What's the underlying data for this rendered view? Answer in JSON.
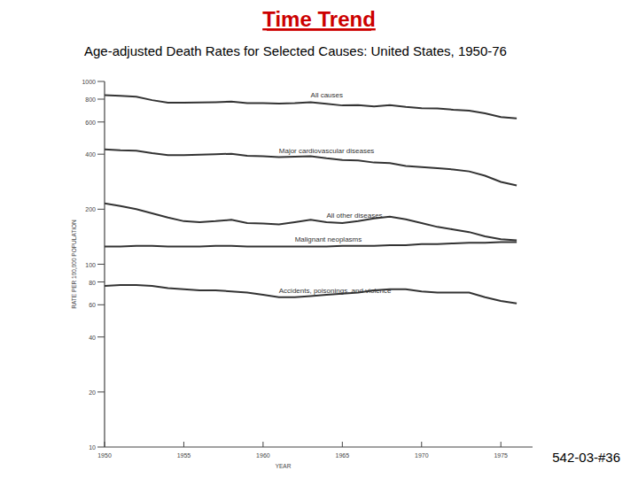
{
  "chart_data": {
    "type": "line",
    "title": "Time Trend",
    "subtitle": "Age-adjusted Death Rates for Selected Causes: United States, 1950-76",
    "x_label": "YEAR",
    "y_label": "RATE PER 100,000 POPULATION",
    "note": "542-03-#36",
    "log": "y",
    "x": [
      1950,
      1951,
      1952,
      1953,
      1954,
      1955,
      1956,
      1957,
      1958,
      1959,
      1960,
      1961,
      1962,
      1963,
      1964,
      1965,
      1966,
      1967,
      1968,
      1969,
      1970,
      1971,
      1972,
      1973,
      1974,
      1975,
      1976
    ],
    "xlim": [
      1950,
      1977
    ],
    "xticks": [
      1950,
      1955,
      1960,
      1965,
      1970,
      1975
    ],
    "ylim": [
      10,
      1000
    ],
    "yticks": [
      10,
      20,
      40,
      60,
      80,
      100,
      200,
      400,
      600,
      800,
      1000
    ],
    "series": [
      {
        "name": "All causes",
        "color": "#333333",
        "values": [
          841,
          835,
          825,
          790,
          765,
          765,
          768,
          770,
          775,
          762,
          761,
          757,
          760,
          770,
          755,
          739,
          742,
          730,
          742,
          725,
          714,
          712,
          700,
          692,
          670,
          638,
          628
        ]
      },
      {
        "name": "Major cardiovascular diseases",
        "color": "#333333",
        "values": [
          425,
          420,
          418,
          405,
          395,
          395,
          397,
          400,
          402,
          392,
          390,
          385,
          388,
          390,
          380,
          372,
          370,
          360,
          357,
          345,
          340,
          335,
          330,
          322,
          305,
          282,
          270
        ]
      },
      {
        "name": "All other diseases",
        "color": "#333333",
        "values": [
          215,
          208,
          200,
          190,
          180,
          172,
          170,
          172,
          175,
          168,
          167,
          165,
          170,
          175,
          170,
          168,
          172,
          178,
          182,
          176,
          168,
          160,
          155,
          150,
          142,
          137,
          135
        ]
      },
      {
        "name": "Malignant neoplasms",
        "color": "#333333",
        "values": [
          125,
          125,
          126,
          126,
          125,
          125,
          125,
          126,
          126,
          125,
          125,
          125,
          125,
          125,
          125,
          126,
          126,
          126,
          127,
          127,
          129,
          129,
          130,
          131,
          131,
          132,
          132
        ]
      },
      {
        "name": "Accidents, poisonings, and violence",
        "color": "#333333",
        "values": [
          76,
          77,
          77,
          76,
          74,
          73,
          72,
          72,
          71,
          70,
          68,
          66,
          66,
          67,
          68,
          69,
          70,
          72,
          73,
          73,
          71,
          70,
          70,
          70,
          66,
          63,
          61
        ]
      }
    ]
  }
}
